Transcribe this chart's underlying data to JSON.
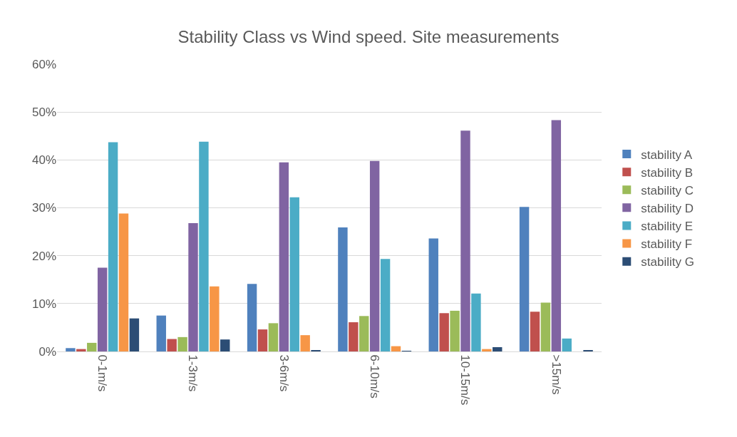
{
  "chart_data": {
    "type": "bar",
    "title": "Stability Class vs Wind speed. Site measurements",
    "categories": [
      "0-1m/s",
      "1-3m/s",
      "3-6m/s",
      "6-10m/s",
      "10-15m/s",
      ">15m/s"
    ],
    "series": [
      {
        "name": "stability A",
        "color": "#4f81bd",
        "values": [
          0.7,
          7.5,
          14.1,
          25.9,
          23.6,
          30.2
        ]
      },
      {
        "name": "stability B",
        "color": "#c0504d",
        "values": [
          0.5,
          2.6,
          4.6,
          6.1,
          8.0,
          8.3
        ]
      },
      {
        "name": "stability C",
        "color": "#9bbb59",
        "values": [
          1.8,
          3.0,
          5.9,
          7.4,
          8.5,
          10.2
        ]
      },
      {
        "name": "stability D",
        "color": "#8064a2",
        "values": [
          17.5,
          26.8,
          39.5,
          39.8,
          46.1,
          48.3
        ]
      },
      {
        "name": "stability E",
        "color": "#4bacc6",
        "values": [
          43.7,
          43.8,
          32.2,
          19.3,
          12.1,
          2.7
        ]
      },
      {
        "name": "stability F",
        "color": "#f79646",
        "values": [
          28.8,
          13.6,
          3.4,
          1.1,
          0.5,
          0
        ]
      },
      {
        "name": "stability G",
        "color": "#2c4d75",
        "values": [
          6.9,
          2.5,
          0.3,
          0.1,
          0.9,
          0.3
        ]
      }
    ],
    "ylim": [
      0,
      60
    ],
    "yticks": [
      {
        "value": 0,
        "label": "0%"
      },
      {
        "value": 10,
        "label": "10%"
      },
      {
        "value": 20,
        "label": "20%"
      },
      {
        "value": 30,
        "label": "30%"
      },
      {
        "value": 40,
        "label": "40%"
      },
      {
        "value": 50,
        "label": "50%"
      },
      {
        "value": 60,
        "label": "60%"
      }
    ],
    "grid": "y",
    "legend": "right"
  }
}
